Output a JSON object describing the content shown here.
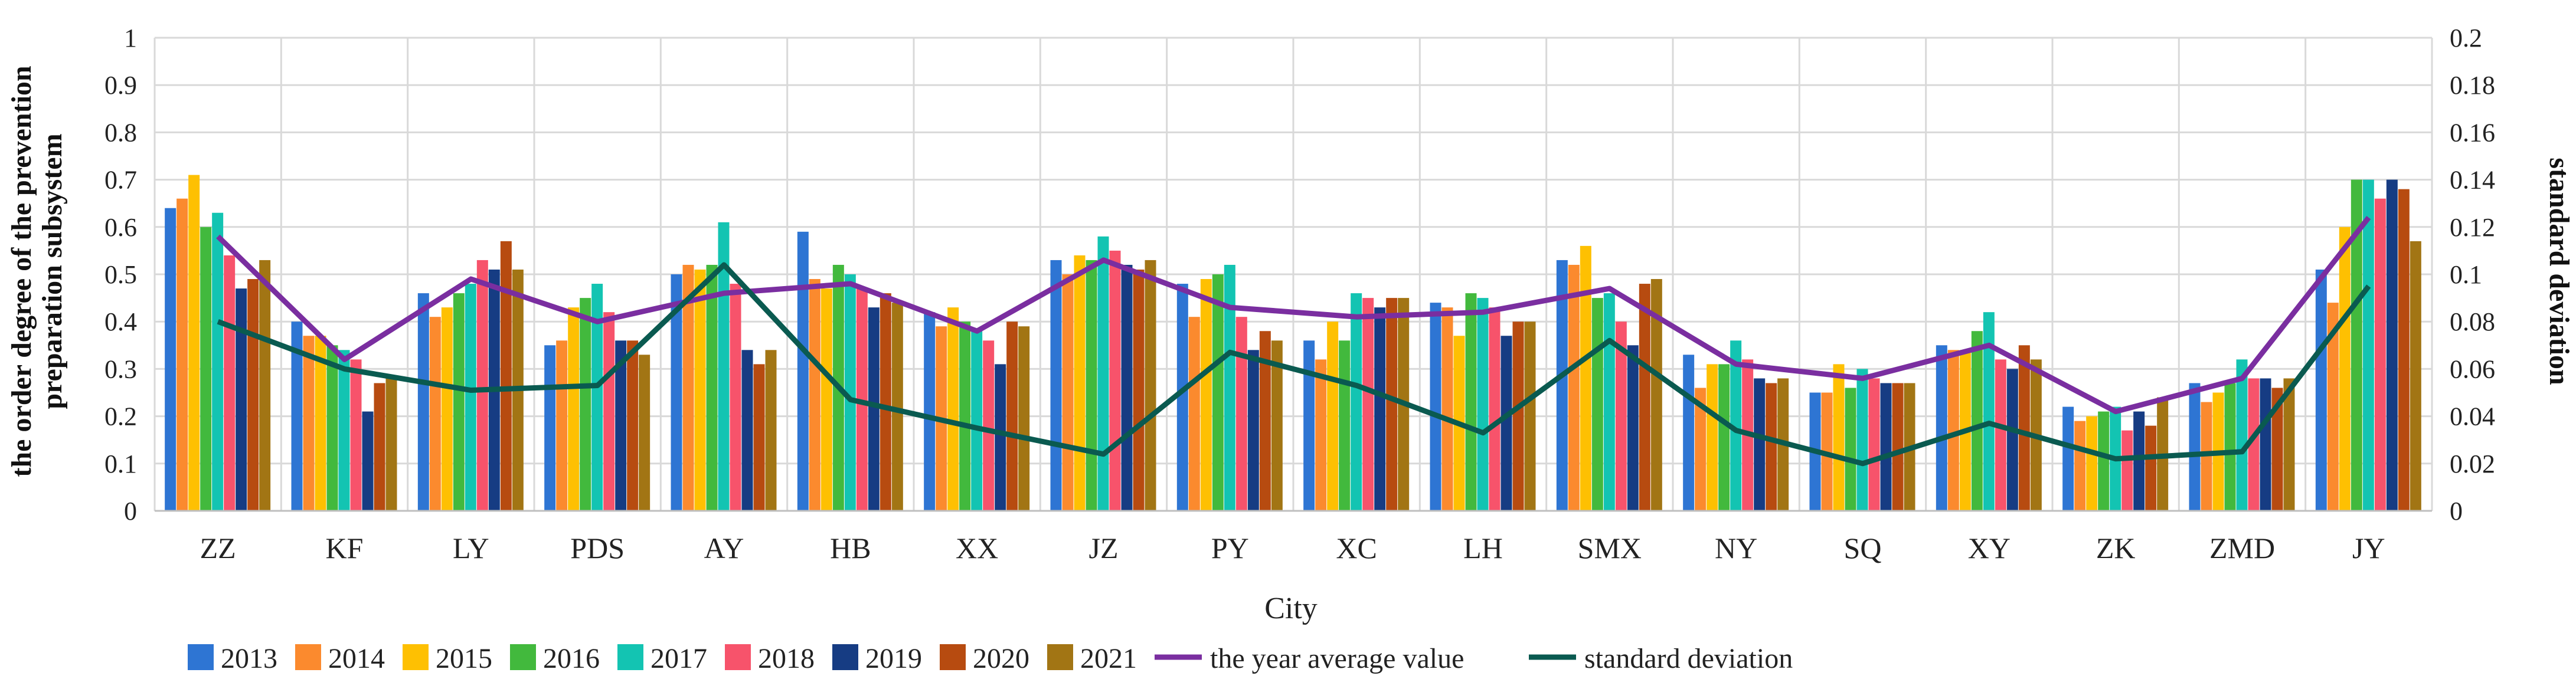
{
  "chart_data": {
    "type": "bar",
    "xlabel": "City",
    "ylabel_left": "the order degree of the prevention preparation subsystem",
    "ylabel_right": "standard deviation",
    "ylim_left": [
      0,
      1
    ],
    "ylim_right": [
      0,
      0.2
    ],
    "yticks_left": [
      "0",
      "0.1",
      "0.2",
      "0.3",
      "0.4",
      "0.5",
      "0.6",
      "0.7",
      "0.8",
      "0.9",
      "1"
    ],
    "yticks_right": [
      "0",
      "0.02",
      "0.04",
      "0.06",
      "0.08",
      "0.1",
      "0.12",
      "0.14",
      "0.16",
      "0.18",
      "0.2"
    ],
    "grid": true,
    "legend_position": "bottom",
    "categories": [
      "ZZ",
      "KF",
      "LY",
      "PDS",
      "AY",
      "HB",
      "XX",
      "JZ",
      "PY",
      "XC",
      "LH",
      "SMX",
      "NY",
      "SQ",
      "XY",
      "ZK",
      "ZMD",
      "JY"
    ],
    "series": [
      {
        "name": "2013",
        "color": "#2e75d3",
        "values": [
          0.64,
          0.4,
          0.46,
          0.35,
          0.5,
          0.59,
          0.42,
          0.53,
          0.48,
          0.36,
          0.44,
          0.53,
          0.33,
          0.25,
          0.35,
          0.22,
          0.27,
          0.51
        ]
      },
      {
        "name": "2014",
        "color": "#fb8a2e",
        "values": [
          0.66,
          0.37,
          0.41,
          0.36,
          0.52,
          0.49,
          0.39,
          0.5,
          0.41,
          0.32,
          0.43,
          0.52,
          0.26,
          0.25,
          0.34,
          0.19,
          0.23,
          0.44
        ]
      },
      {
        "name": "2015",
        "color": "#fec002",
        "values": [
          0.71,
          0.37,
          0.43,
          0.43,
          0.51,
          0.47,
          0.43,
          0.54,
          0.49,
          0.4,
          0.37,
          0.56,
          0.31,
          0.31,
          0.34,
          0.2,
          0.25,
          0.6
        ]
      },
      {
        "name": "2016",
        "color": "#42b93d",
        "values": [
          0.6,
          0.35,
          0.46,
          0.45,
          0.52,
          0.52,
          0.4,
          0.53,
          0.5,
          0.36,
          0.46,
          0.45,
          0.31,
          0.26,
          0.38,
          0.21,
          0.27,
          0.7
        ]
      },
      {
        "name": "2017",
        "color": "#13c4b2",
        "values": [
          0.63,
          0.34,
          0.48,
          0.48,
          0.61,
          0.5,
          0.38,
          0.58,
          0.52,
          0.46,
          0.45,
          0.46,
          0.36,
          0.3,
          0.42,
          0.22,
          0.32,
          0.7
        ]
      },
      {
        "name": "2018",
        "color": "#f7536b",
        "values": [
          0.54,
          0.32,
          0.53,
          0.42,
          0.48,
          0.47,
          0.36,
          0.55,
          0.41,
          0.45,
          0.43,
          0.4,
          0.32,
          0.28,
          0.32,
          0.17,
          0.28,
          0.66
        ]
      },
      {
        "name": "2019",
        "color": "#163c83",
        "values": [
          0.47,
          0.21,
          0.51,
          0.36,
          0.34,
          0.43,
          0.31,
          0.52,
          0.34,
          0.43,
          0.37,
          0.35,
          0.28,
          0.27,
          0.3,
          0.21,
          0.28,
          0.7
        ]
      },
      {
        "name": "2020",
        "color": "#b74b10",
        "values": [
          0.49,
          0.27,
          0.57,
          0.36,
          0.31,
          0.46,
          0.4,
          0.51,
          0.38,
          0.45,
          0.4,
          0.48,
          0.27,
          0.27,
          0.35,
          0.18,
          0.26,
          0.68
        ]
      },
      {
        "name": "2021",
        "color": "#a27514",
        "values": [
          0.53,
          0.28,
          0.51,
          0.33,
          0.34,
          0.44,
          0.39,
          0.53,
          0.36,
          0.45,
          0.4,
          0.49,
          0.28,
          0.27,
          0.32,
          0.24,
          0.28,
          0.57
        ]
      }
    ],
    "lines": [
      {
        "name": "the year average value",
        "color": "#7a2ea0",
        "axis": "left",
        "values": [
          0.58,
          0.32,
          0.49,
          0.4,
          0.46,
          0.48,
          0.38,
          0.53,
          0.43,
          0.41,
          0.42,
          0.47,
          0.31,
          0.28,
          0.35,
          0.21,
          0.28,
          0.62
        ]
      },
      {
        "name": "standard deviation",
        "color": "#0a5a50",
        "axis": "right",
        "values": [
          0.08,
          0.06,
          0.051,
          0.053,
          0.104,
          0.047,
          0.035,
          0.024,
          0.067,
          0.053,
          0.033,
          0.072,
          0.034,
          0.02,
          0.037,
          0.022,
          0.025,
          0.095
        ]
      }
    ]
  }
}
